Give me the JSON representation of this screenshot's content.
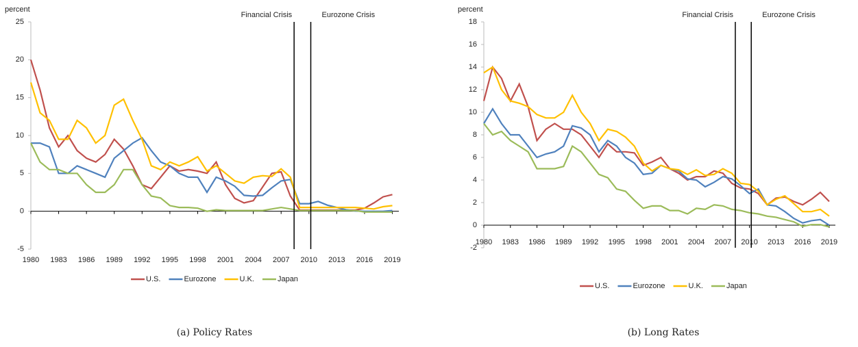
{
  "chart_data": [
    {
      "type": "line",
      "y_label": "percent",
      "caption": "(a)  Policy Rates",
      "x": [
        1980,
        1981,
        1982,
        1983,
        1984,
        1985,
        1986,
        1987,
        1988,
        1989,
        1990,
        1991,
        1992,
        1993,
        1994,
        1995,
        1996,
        1997,
        1998,
        1999,
        2000,
        2001,
        2002,
        2003,
        2004,
        2005,
        2006,
        2007,
        2008,
        2009,
        2010,
        2011,
        2012,
        2013,
        2014,
        2015,
        2016,
        2017,
        2018,
        2019
      ],
      "series": [
        {
          "name": "U.S.",
          "color": "#c0504d",
          "values": [
            20,
            16,
            11,
            8.5,
            10,
            8,
            7,
            6.5,
            7.5,
            9.5,
            8.2,
            6,
            3.5,
            3,
            4.5,
            6,
            5.3,
            5.5,
            5.3,
            5,
            6.5,
            3.5,
            1.7,
            1.1,
            1.4,
            3.2,
            5,
            5.2,
            2,
            0.15,
            0.15,
            0.15,
            0.15,
            0.15,
            0.15,
            0.15,
            0.4,
            1.1,
            1.9,
            2.2
          ]
        },
        {
          "name": "Eurozone",
          "color": "#4f81bd",
          "values": [
            9,
            9,
            8.5,
            5,
            5,
            6,
            5.5,
            5,
            4.5,
            7,
            8,
            9,
            9.7,
            8,
            6.5,
            6,
            5,
            4.5,
            4.5,
            2.5,
            4.5,
            4,
            3.3,
            2.1,
            2,
            2.1,
            3.1,
            4,
            4.2,
            1,
            1,
            1.3,
            0.8,
            0.5,
            0.2,
            0.05,
            0,
            0,
            0,
            0.1
          ]
        },
        {
          "name": "U.K.",
          "color": "#ffc000",
          "values": [
            17,
            13,
            12,
            9.5,
            9.5,
            12,
            11,
            9,
            10,
            14,
            14.8,
            12,
            9.5,
            6,
            5.5,
            6.5,
            6,
            6.5,
            7.2,
            5.3,
            6,
            5,
            4,
            3.7,
            4.5,
            4.7,
            4.6,
            5.6,
            4.5,
            0.5,
            0.5,
            0.5,
            0.5,
            0.5,
            0.5,
            0.5,
            0.4,
            0.3,
            0.6,
            0.75
          ]
        },
        {
          "name": "Japan",
          "color": "#9bbb59",
          "values": [
            9,
            6.5,
            5.5,
            5.5,
            5,
            5,
            3.5,
            2.5,
            2.5,
            3.5,
            5.5,
            5.5,
            3.5,
            2,
            1.75,
            0.75,
            0.5,
            0.5,
            0.4,
            0,
            0.2,
            0.1,
            0.1,
            0.1,
            0.1,
            0.1,
            0.3,
            0.5,
            0.3,
            0.1,
            0.1,
            0.1,
            0.1,
            0.1,
            0.1,
            0.1,
            -0.1,
            -0.1,
            -0.1,
            -0.1
          ]
        }
      ],
      "xlim": [
        1980,
        2019.7
      ],
      "xticks": [
        1980,
        1983,
        1986,
        1989,
        1992,
        1995,
        1998,
        2001,
        2004,
        2007,
        2010,
        2013,
        2016,
        2019
      ],
      "ylim": [
        -5,
        25
      ],
      "yticks": [
        -5,
        0,
        5,
        10,
        15,
        20,
        25
      ],
      "grid": false,
      "legend": "bottom",
      "annotations": [
        {
          "text": "Financial Crisis",
          "x": 2008.4
        },
        {
          "text": "Eurozone Crisis",
          "x": 2010.2
        }
      ]
    },
    {
      "type": "line",
      "y_label": "percent",
      "caption": "(b)  Long Rates",
      "x": [
        1980,
        1981,
        1982,
        1983,
        1984,
        1985,
        1986,
        1987,
        1988,
        1989,
        1990,
        1991,
        1992,
        1993,
        1994,
        1995,
        1996,
        1997,
        1998,
        1999,
        2000,
        2001,
        2002,
        2003,
        2004,
        2005,
        2006,
        2007,
        2008,
        2009,
        2010,
        2011,
        2012,
        2013,
        2014,
        2015,
        2016,
        2017,
        2018,
        2019
      ],
      "series": [
        {
          "name": "U.S.",
          "color": "#c0504d",
          "values": [
            11,
            14,
            13,
            11,
            12.5,
            10.5,
            7.5,
            8.5,
            9,
            8.5,
            8.5,
            8,
            7,
            6,
            7.2,
            6.5,
            6.5,
            6.4,
            5.3,
            5.6,
            6,
            5,
            4.6,
            4,
            4.3,
            4.3,
            4.8,
            4.6,
            3.7,
            3.3,
            3.2,
            2.8,
            1.8,
            2.4,
            2.5,
            2.1,
            1.8,
            2.3,
            2.9,
            2.1
          ]
        },
        {
          "name": "Eurozone",
          "color": "#4f81bd",
          "values": [
            9,
            10.3,
            9,
            8,
            8,
            7,
            6,
            6.3,
            6.5,
            7,
            8.8,
            8.6,
            8,
            6.5,
            7.5,
            7,
            6,
            5.5,
            4.5,
            4.6,
            5.3,
            5,
            4.8,
            4.1,
            4,
            3.4,
            3.8,
            4.3,
            4.1,
            3.5,
            2.8,
            3.2,
            1.8,
            1.7,
            1.2,
            0.6,
            0.2,
            0.4,
            0.5,
            0
          ]
        },
        {
          "name": "U.K.",
          "color": "#ffc000",
          "values": [
            13.5,
            14,
            12,
            11,
            10.8,
            10.5,
            9.8,
            9.5,
            9.5,
            10,
            11.5,
            10,
            9,
            7.5,
            8.5,
            8.3,
            7.8,
            7,
            5.5,
            4.8,
            5.3,
            5,
            4.9,
            4.5,
            4.9,
            4.4,
            4.5,
            5,
            4.6,
            3.7,
            3.6,
            3,
            1.8,
            2.3,
            2.6,
            1.9,
            1.2,
            1.2,
            1.4,
            0.8
          ]
        },
        {
          "name": "Japan",
          "color": "#9bbb59",
          "values": [
            9,
            8,
            8.3,
            7.5,
            7,
            6.5,
            5,
            5,
            5,
            5.2,
            7,
            6.5,
            5.5,
            4.5,
            4.2,
            3.2,
            3,
            2.2,
            1.5,
            1.7,
            1.7,
            1.3,
            1.3,
            1,
            1.5,
            1.4,
            1.8,
            1.7,
            1.4,
            1.3,
            1.1,
            1,
            0.8,
            0.7,
            0.5,
            0.3,
            -0.1,
            0.05,
            0.05,
            -0.15
          ]
        }
      ],
      "xlim": [
        1980,
        2019.7
      ],
      "xticks": [
        1980,
        1983,
        1986,
        1989,
        1992,
        1995,
        1998,
        2001,
        2004,
        2007,
        2010,
        2013,
        2016,
        2019
      ],
      "ylim": [
        -2,
        18
      ],
      "yticks": [
        -2,
        0,
        2,
        4,
        6,
        8,
        10,
        12,
        14,
        16,
        18
      ],
      "grid": false,
      "legend": "bottom",
      "annotations": [
        {
          "text": "Financial Crisis",
          "x": 2008.4
        },
        {
          "text": "Eurozone Crisis",
          "x": 2010.2
        }
      ]
    }
  ]
}
